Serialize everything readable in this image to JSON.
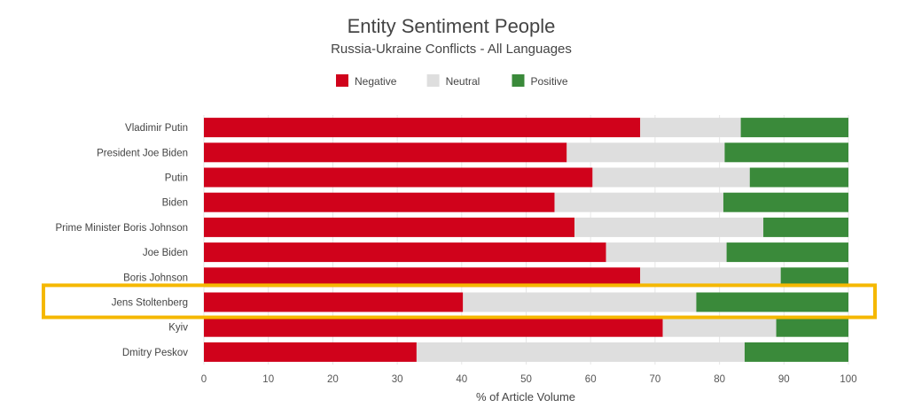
{
  "chart_data": {
    "type": "bar",
    "orientation": "horizontal",
    "stacked": true,
    "title": "Entity Sentiment People",
    "subtitle": "Russia-Ukraine Conflicts - All Languages",
    "xlabel": "% of Article Volume",
    "ylabel": "",
    "xlim": [
      0,
      100
    ],
    "xticks": [
      0,
      10,
      20,
      30,
      40,
      50,
      60,
      70,
      80,
      90,
      100
    ],
    "grid": true,
    "legend_position": "top-center",
    "categories": [
      "Vladimir Putin",
      "President Joe Biden",
      "Putin",
      "Biden",
      "Prime Minister Boris Johnson",
      "Joe Biden",
      "Boris Johnson",
      "Jens Stoltenberg",
      "Kyiv",
      "Dmitry Peskov"
    ],
    "series": [
      {
        "name": "Negative",
        "color": "#d0021b",
        "values": [
          67.7,
          56.3,
          60.3,
          54.4,
          57.5,
          62.4,
          67.7,
          40.2,
          71.2,
          33.0
        ]
      },
      {
        "name": "Neutral",
        "color": "#dedede",
        "values": [
          15.6,
          24.5,
          24.4,
          26.2,
          29.3,
          18.7,
          21.8,
          36.2,
          17.6,
          50.9
        ]
      },
      {
        "name": "Positive",
        "color": "#3a8a3a",
        "values": [
          16.7,
          19.2,
          15.3,
          19.4,
          13.2,
          18.9,
          10.5,
          23.6,
          11.2,
          16.1
        ]
      }
    ],
    "highlight": {
      "category": "Jens Stoltenberg",
      "color": "#f5b800"
    }
  }
}
